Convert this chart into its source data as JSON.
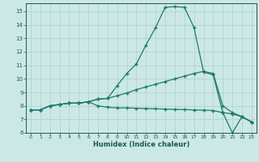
{
  "title": "",
  "xlabel": "Humidex (Indice chaleur)",
  "xlim": [
    -0.5,
    23.5
  ],
  "ylim": [
    6,
    15.6
  ],
  "yticks": [
    6,
    7,
    8,
    9,
    10,
    11,
    12,
    13,
    14,
    15
  ],
  "xticks": [
    0,
    1,
    2,
    3,
    4,
    5,
    6,
    7,
    8,
    9,
    10,
    11,
    12,
    13,
    14,
    15,
    16,
    17,
    18,
    19,
    20,
    21,
    22,
    23
  ],
  "bg_color": "#cce8e5",
  "line_color": "#1a7a6e",
  "grid_color": "#aacfcc",
  "line1_x": [
    0,
    1,
    2,
    3,
    4,
    5,
    6,
    7,
    8,
    9,
    10,
    11,
    12,
    13,
    14,
    15,
    16,
    17,
    18,
    19,
    20,
    21,
    22,
    23
  ],
  "line1_y": [
    7.7,
    7.7,
    8.0,
    8.1,
    8.2,
    8.2,
    8.3,
    8.5,
    8.55,
    9.5,
    10.4,
    11.1,
    12.5,
    13.8,
    15.3,
    15.35,
    15.3,
    13.8,
    10.5,
    10.3,
    7.5,
    6.0,
    7.2,
    6.8
  ],
  "line2_x": [
    0,
    1,
    2,
    3,
    4,
    5,
    6,
    7,
    8,
    9,
    10,
    11,
    12,
    13,
    14,
    15,
    16,
    17,
    18,
    19,
    20,
    21,
    22,
    23
  ],
  "line2_y": [
    7.7,
    7.7,
    8.0,
    8.1,
    8.2,
    8.2,
    8.3,
    8.5,
    8.55,
    8.75,
    8.95,
    9.2,
    9.4,
    9.6,
    9.8,
    10.0,
    10.2,
    10.4,
    10.55,
    10.4,
    8.0,
    7.5,
    7.2,
    6.8
  ],
  "line3_x": [
    0,
    1,
    2,
    3,
    4,
    5,
    6,
    7,
    8,
    9,
    10,
    11,
    12,
    13,
    14,
    15,
    16,
    17,
    18,
    19,
    20,
    21,
    22,
    23
  ],
  "line3_y": [
    7.7,
    7.7,
    8.0,
    8.1,
    8.2,
    8.2,
    8.3,
    8.0,
    7.9,
    7.85,
    7.85,
    7.82,
    7.8,
    7.78,
    7.76,
    7.74,
    7.72,
    7.7,
    7.68,
    7.65,
    7.5,
    7.4,
    7.2,
    6.8
  ]
}
